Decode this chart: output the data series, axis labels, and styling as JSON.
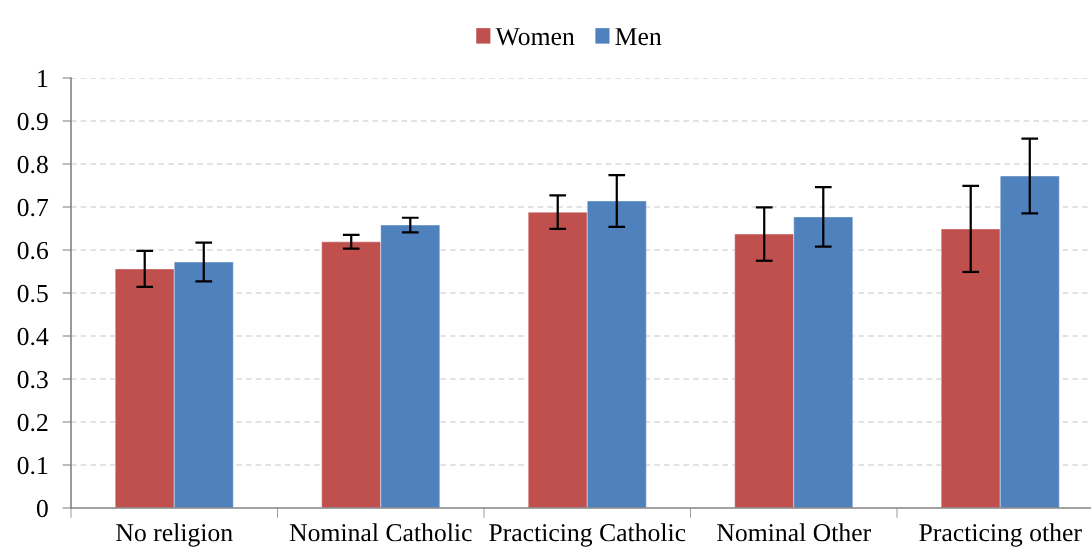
{
  "chart_data": {
    "type": "bar",
    "categories": [
      "No religion",
      "Nominal Catholic",
      "Practicing Catholic",
      "Nominal Other",
      "Practicing other"
    ],
    "series": [
      {
        "name": "Women",
        "color": "#c0504d",
        "values": [
          0.556,
          0.619,
          0.688,
          0.637,
          0.649
        ],
        "errors": [
          0.042,
          0.016,
          0.039,
          0.062,
          0.1
        ]
      },
      {
        "name": "Men",
        "color": "#4f81bd",
        "values": [
          0.572,
          0.658,
          0.714,
          0.677,
          0.772
        ],
        "errors": [
          0.045,
          0.017,
          0.06,
          0.069,
          0.087
        ]
      }
    ],
    "ylim": [
      0,
      1
    ],
    "yticks": [
      0,
      0.1,
      0.2,
      0.3,
      0.4,
      0.5,
      0.6,
      0.7,
      0.8,
      0.9,
      1
    ],
    "grid": "y",
    "legend": "top"
  }
}
